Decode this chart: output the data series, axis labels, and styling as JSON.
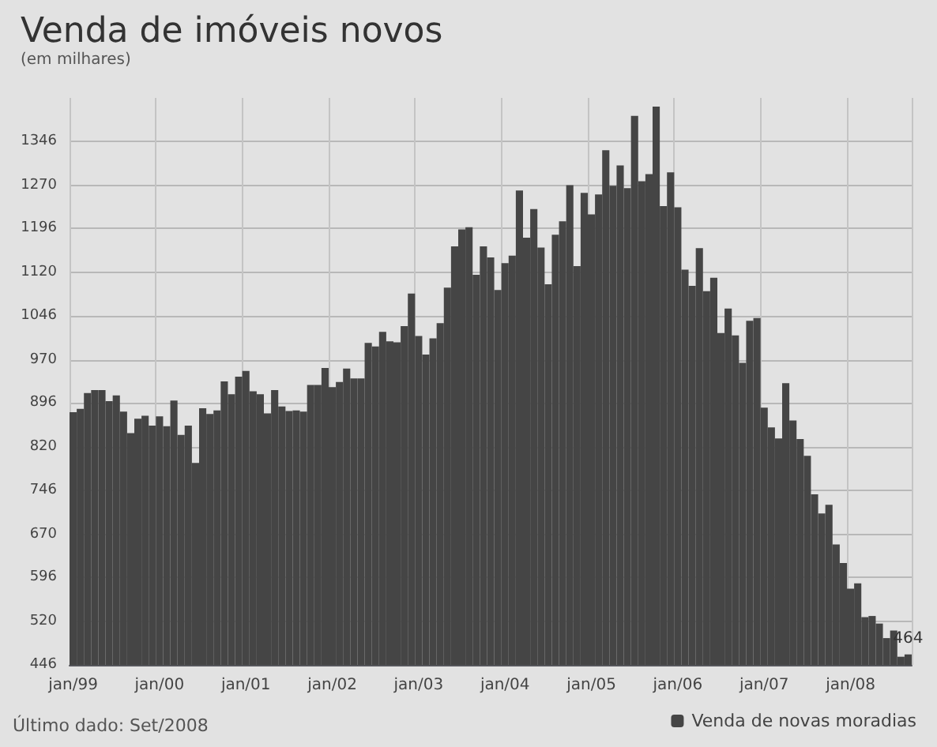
{
  "chart_data": {
    "type": "bar",
    "title": "Venda de imóveis novos",
    "subtitle": "(em milhares)",
    "categories": [
      "jan/99",
      null,
      null,
      null,
      null,
      null,
      null,
      null,
      null,
      null,
      null,
      null,
      "jan/00",
      null,
      null,
      null,
      null,
      null,
      null,
      null,
      null,
      null,
      null,
      null,
      "jan/01",
      null,
      null,
      null,
      null,
      null,
      null,
      null,
      null,
      null,
      null,
      null,
      "jan/02",
      null,
      null,
      null,
      null,
      null,
      null,
      null,
      null,
      null,
      null,
      null,
      "jan/03",
      null,
      null,
      null,
      null,
      null,
      null,
      null,
      null,
      null,
      null,
      null,
      "jan/04",
      null,
      null,
      null,
      null,
      null,
      null,
      null,
      null,
      null,
      null,
      null,
      "jan/05",
      null,
      null,
      null,
      null,
      null,
      null,
      null,
      null,
      null,
      null,
      null,
      "jan/06",
      null,
      null,
      null,
      null,
      null,
      null,
      null,
      null,
      null,
      null,
      null,
      "jan/07",
      null,
      null,
      null,
      null,
      null,
      null,
      null,
      null,
      null,
      null,
      null,
      "jan/08",
      null,
      null,
      null,
      null,
      null,
      null,
      null,
      null
    ],
    "series": [
      {
        "name": "Venda de novas moradias",
        "color": "#454545",
        "values": [
          880,
          886,
          913,
          918,
          918,
          899,
          909,
          881,
          844,
          869,
          874,
          857,
          873,
          856,
          900,
          841,
          857,
          793,
          887,
          877,
          883,
          933,
          911,
          941,
          951,
          916,
          911,
          878,
          918,
          890,
          882,
          883,
          881,
          927,
          927,
          956,
          923,
          932,
          955,
          938,
          938,
          999,
          993,
          1018,
          1002,
          1000,
          1028,
          1084,
          1011,
          979,
          1007,
          1033,
          1094,
          1165,
          1194,
          1198,
          1116,
          1165,
          1146,
          1090,
          1136,
          1149,
          1261,
          1180,
          1229,
          1163,
          1100,
          1185,
          1208,
          1270,
          1131,
          1257,
          1220,
          1254,
          1330,
          1269,
          1304,
          1265,
          1389,
          1277,
          1289,
          1405,
          1234,
          1292,
          1232,
          1125,
          1097,
          1162,
          1088,
          1111,
          1016,
          1058,
          1012,
          965,
          1037,
          1042,
          888,
          854,
          835,
          930,
          866,
          834,
          805,
          739,
          706,
          721,
          653,
          621,
          577,
          586,
          528,
          530,
          517,
          492,
          505,
          460,
          464
        ],
        "value_labels": [
          null,
          null,
          null,
          null,
          null,
          null,
          null,
          null,
          null,
          null,
          null,
          null,
          null,
          null,
          null,
          null,
          null,
          null,
          null,
          null,
          null,
          null,
          null,
          null,
          null,
          null,
          null,
          null,
          null,
          null,
          null,
          null,
          null,
          null,
          null,
          null,
          null,
          null,
          null,
          null,
          null,
          null,
          null,
          null,
          null,
          null,
          null,
          null,
          null,
          null,
          null,
          null,
          null,
          null,
          null,
          null,
          null,
          null,
          null,
          null,
          null,
          null,
          null,
          null,
          null,
          null,
          null,
          null,
          null,
          null,
          null,
          null,
          null,
          null,
          null,
          null,
          null,
          null,
          null,
          null,
          null,
          null,
          null,
          null,
          null,
          null,
          null,
          null,
          null,
          null,
          null,
          null,
          null,
          null,
          null,
          null,
          null,
          null,
          null,
          null,
          null,
          null,
          null,
          null,
          null,
          null,
          null,
          null,
          null,
          null,
          null,
          null,
          null,
          null,
          null,
          null,
          "464"
        ]
      }
    ],
    "ylim": [
      446,
      1420
    ],
    "yticks": [
      446,
      520,
      596,
      670,
      746,
      820,
      896,
      970,
      1046,
      1120,
      1196,
      1270,
      1346
    ],
    "grid": true,
    "legend": "bottom right",
    "annotations": [
      "Último dado: Set/2008"
    ]
  }
}
